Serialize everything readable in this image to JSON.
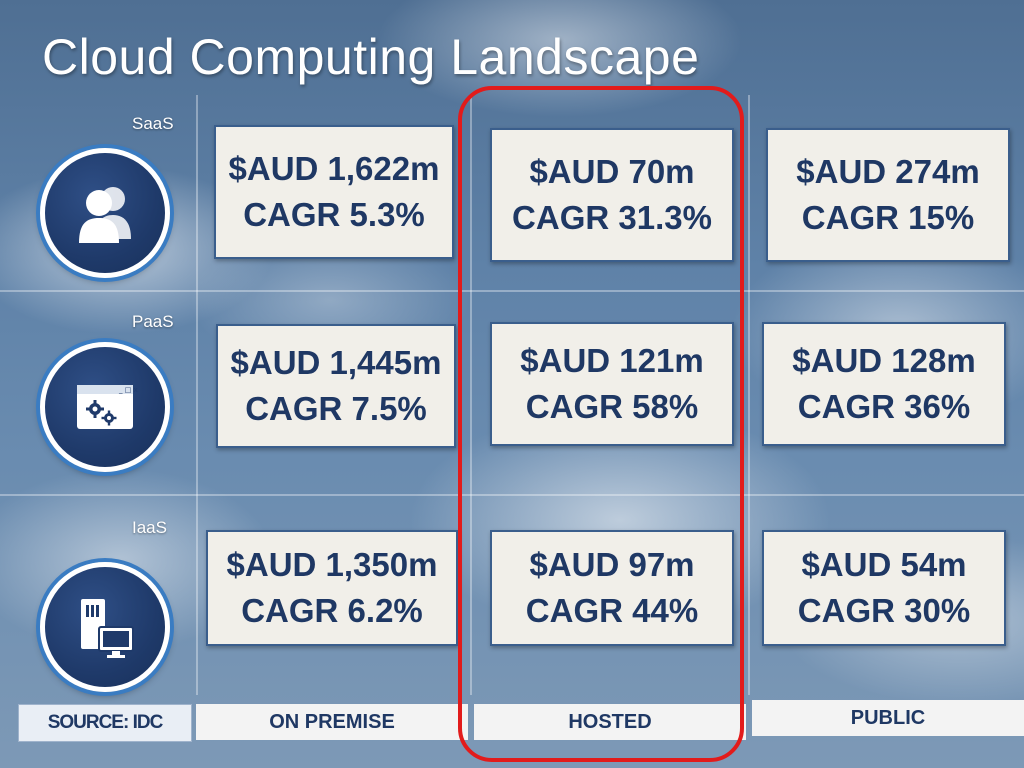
{
  "title": "Cloud Computing Landscape",
  "rows": [
    {
      "label": "SaaS",
      "icon": "users-icon"
    },
    {
      "label": "PaaS",
      "icon": "app-gears-icon"
    },
    {
      "label": "IaaS",
      "icon": "server-monitor-icon"
    }
  ],
  "columns": {
    "source": "SOURCE: IDC",
    "on_premise": "ON PREMISE",
    "hosted": "HOSTED",
    "public": "PUBLIC"
  },
  "cells": {
    "saas": {
      "on_premise": {
        "value": "$AUD 1,622m",
        "cagr": "CAGR 5.3%"
      },
      "hosted": {
        "value": "$AUD 70m",
        "cagr": "CAGR 31.3%"
      },
      "public": {
        "value": "$AUD 274m",
        "cagr": "CAGR 15%"
      }
    },
    "paas": {
      "on_premise": {
        "value": "$AUD 1,445m",
        "cagr": "CAGR 7.5%"
      },
      "hosted": {
        "value": "$AUD 121m",
        "cagr": "CAGR 58%"
      },
      "public": {
        "value": "$AUD 128m",
        "cagr": "CAGR 36%"
      }
    },
    "iaas": {
      "on_premise": {
        "value": "$AUD 1,350m",
        "cagr": "CAGR 6.2%"
      },
      "hosted": {
        "value": "$AUD 97m",
        "cagr": "CAGR 44%"
      },
      "public": {
        "value": "$AUD 54m",
        "cagr": "CAGR 30%"
      }
    }
  },
  "colors": {
    "accent_text": "#1f3864",
    "highlight": "#e21b1b",
    "icon_ring": "#3a7cc2"
  }
}
